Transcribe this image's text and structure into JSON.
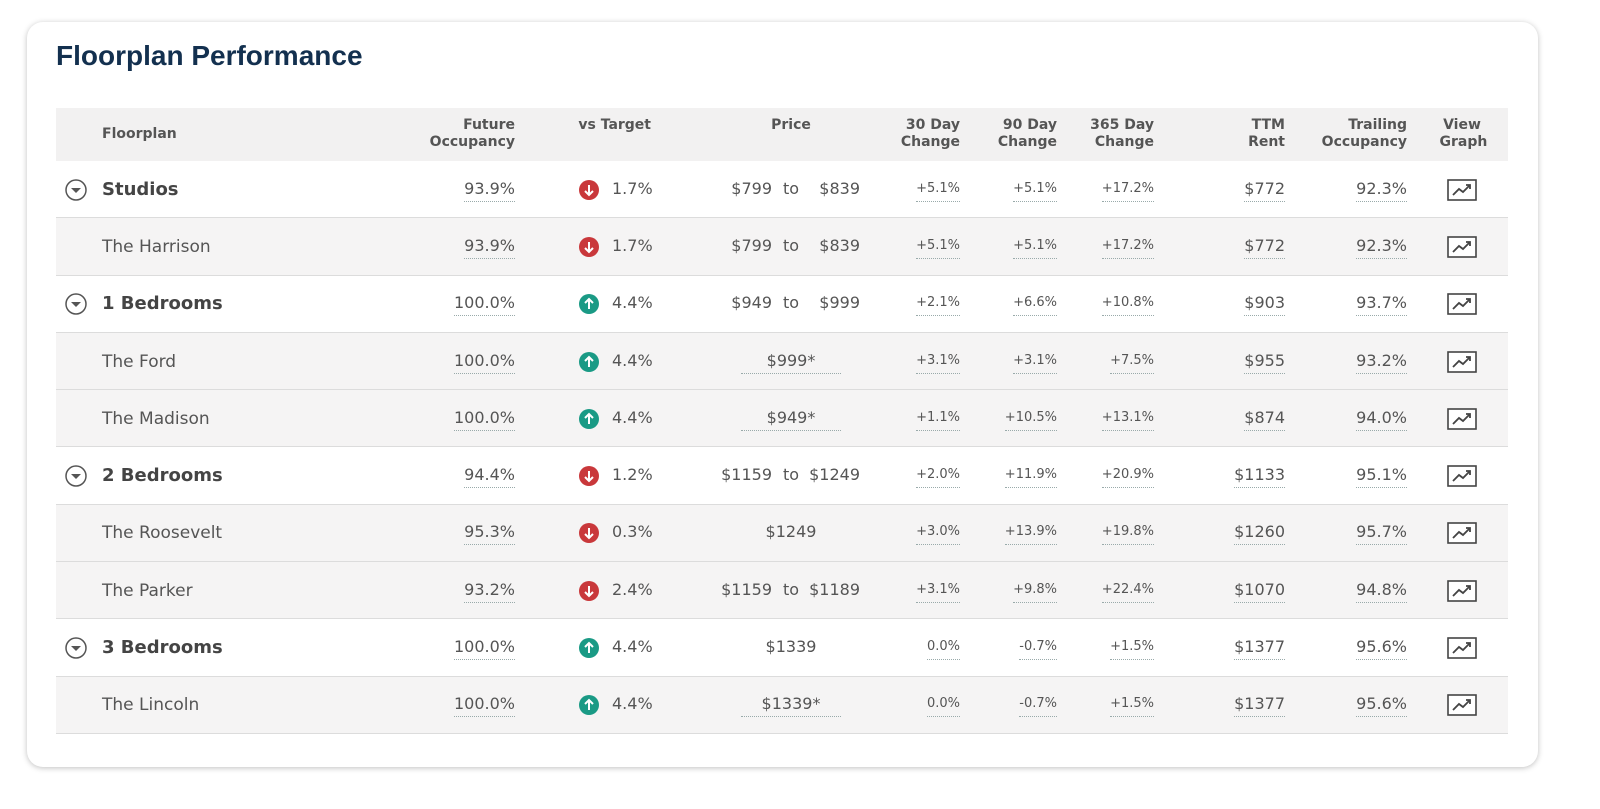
{
  "header": {
    "title": "Floorplan Performance"
  },
  "table": {
    "columns": [
      "Floorplan",
      "Future Occupancy",
      "vs Target",
      "Price",
      "30 Day Change",
      "90 Day Change",
      "365 Day Change",
      "TTM Rent",
      "Trailing Occupancy",
      "View Graph"
    ],
    "rows": [
      {
        "level": "group",
        "name": "Studios",
        "future_occupancy": "93.9%",
        "trend": "down",
        "vs_target": "1.7%",
        "price": [
          "$799",
          "to",
          "$839"
        ],
        "change_30": "+5.1%",
        "change_90": "+5.1%",
        "change_365": "+17.2%",
        "ttm_rent": "$772",
        "trailing_occupancy": "92.3%"
      },
      {
        "level": "item",
        "name": "The Harrison",
        "future_occupancy": "93.9%",
        "trend": "down",
        "vs_target": "1.7%",
        "price": [
          "$799",
          "to",
          "$839"
        ],
        "change_30": "+5.1%",
        "change_90": "+5.1%",
        "change_365": "+17.2%",
        "ttm_rent": "$772",
        "trailing_occupancy": "92.3%"
      },
      {
        "level": "group",
        "name": "1 Bedrooms",
        "future_occupancy": "100.0%",
        "trend": "up",
        "vs_target": "4.4%",
        "price": [
          "$949",
          "to",
          "$999"
        ],
        "change_30": "+2.1%",
        "change_90": "+6.6%",
        "change_365": "+10.8%",
        "ttm_rent": "$903",
        "trailing_occupancy": "93.7%"
      },
      {
        "level": "item",
        "name": "The Ford",
        "future_occupancy": "100.0%",
        "trend": "up",
        "vs_target": "4.4%",
        "price": [
          "$999*"
        ],
        "change_30": "+3.1%",
        "change_90": "+3.1%",
        "change_365": "+7.5%",
        "ttm_rent": "$955",
        "trailing_occupancy": "93.2%"
      },
      {
        "level": "item",
        "name": "The Madison",
        "future_occupancy": "100.0%",
        "trend": "up",
        "vs_target": "4.4%",
        "price": [
          "$949*"
        ],
        "change_30": "+1.1%",
        "change_90": "+10.5%",
        "change_365": "+13.1%",
        "ttm_rent": "$874",
        "trailing_occupancy": "94.0%"
      },
      {
        "level": "group",
        "name": "2 Bedrooms",
        "future_occupancy": "94.4%",
        "trend": "down",
        "vs_target": "1.2%",
        "price": [
          "$1159",
          "to",
          "$1249"
        ],
        "change_30": "+2.0%",
        "change_90": "+11.9%",
        "change_365": "+20.9%",
        "ttm_rent": "$1133",
        "trailing_occupancy": "95.1%"
      },
      {
        "level": "item",
        "name": "The Roosevelt",
        "future_occupancy": "95.3%",
        "trend": "down",
        "vs_target": "0.3%",
        "price": [
          "$1249"
        ],
        "change_30": "+3.0%",
        "change_90": "+13.9%",
        "change_365": "+19.8%",
        "ttm_rent": "$1260",
        "trailing_occupancy": "95.7%"
      },
      {
        "level": "item",
        "name": "The Parker",
        "future_occupancy": "93.2%",
        "trend": "down",
        "vs_target": "2.4%",
        "price": [
          "$1159",
          "to",
          "$1189"
        ],
        "change_30": "+3.1%",
        "change_90": "+9.8%",
        "change_365": "+22.4%",
        "ttm_rent": "$1070",
        "trailing_occupancy": "94.8%"
      },
      {
        "level": "group",
        "name": "3 Bedrooms",
        "future_occupancy": "100.0%",
        "trend": "up",
        "vs_target": "4.4%",
        "price": [
          "$1339"
        ],
        "change_30": "0.0%",
        "change_90": "-0.7%",
        "change_365": "+1.5%",
        "ttm_rent": "$1377",
        "trailing_occupancy": "95.6%"
      },
      {
        "level": "item",
        "name": "The Lincoln",
        "future_occupancy": "100.0%",
        "trend": "up",
        "vs_target": "4.4%",
        "price": [
          "$1339*"
        ],
        "change_30": "0.0%",
        "change_90": "-0.7%",
        "change_365": "+1.5%",
        "ttm_rent": "$1377",
        "trailing_occupancy": "95.6%"
      }
    ]
  }
}
